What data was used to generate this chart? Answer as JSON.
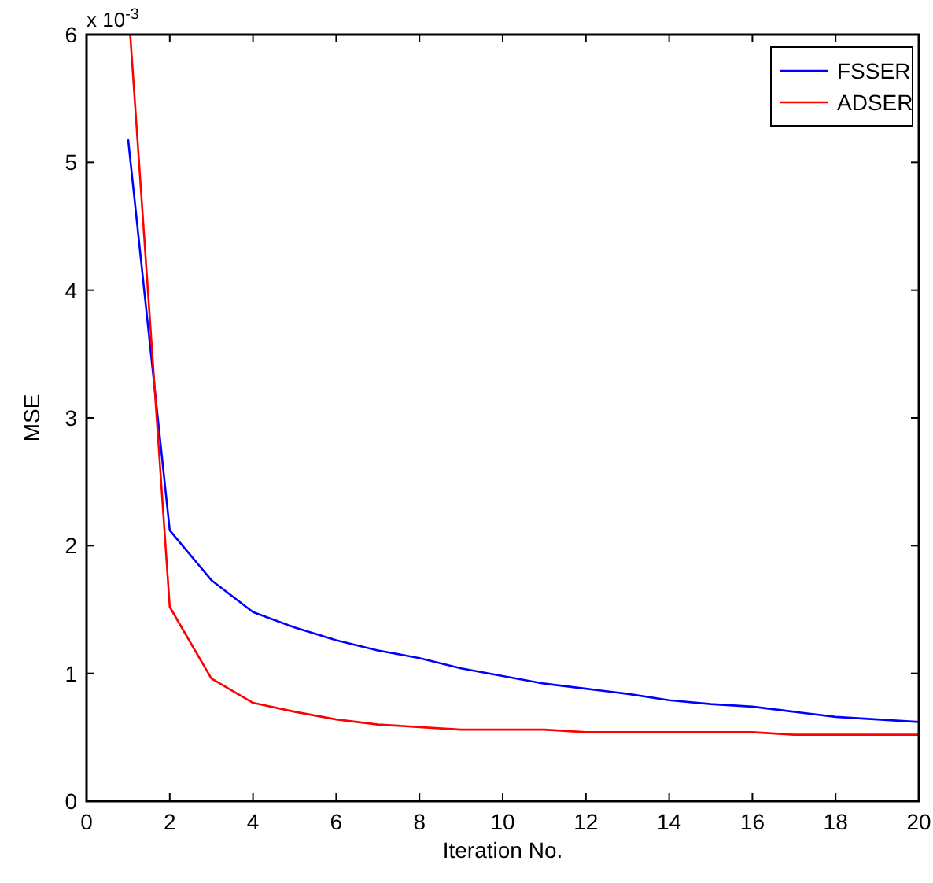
{
  "chart_data": {
    "type": "line",
    "xlabel": "Iteration No.",
    "ylabel": "MSE",
    "annotations": [
      "x 10$^{-3}$"
    ],
    "x": [
      1,
      2,
      3,
      4,
      5,
      6,
      7,
      8,
      9,
      10,
      11,
      12,
      13,
      14,
      15,
      16,
      17,
      18,
      19,
      20
    ],
    "series": [
      {
        "name": "FSSER",
        "color": "#0000ff",
        "values": [
          5.18,
          2.12,
          1.73,
          1.48,
          1.36,
          1.26,
          1.18,
          1.12,
          1.04,
          0.98,
          0.92,
          0.88,
          0.84,
          0.79,
          0.76,
          0.74,
          0.7,
          0.66,
          0.64,
          0.62
        ]
      },
      {
        "name": "ADSER",
        "color": "#ff0000",
        "x": [
          1.05,
          2,
          3,
          4,
          5,
          6,
          7,
          8,
          9,
          10,
          11,
          12,
          13,
          14,
          15,
          16,
          17,
          18,
          19,
          20
        ],
        "values": [
          6,
          1.52,
          0.96,
          0.77,
          0.7,
          0.64,
          0.6,
          0.58,
          0.56,
          0.56,
          0.56,
          0.54,
          0.54,
          0.54,
          0.54,
          0.54,
          0.52,
          0.52,
          0.52,
          0.52
        ]
      }
    ],
    "xlim": [
      0,
      20
    ],
    "xticks": [
      0,
      2,
      4,
      6,
      8,
      10,
      12,
      14,
      16,
      18,
      20
    ],
    "ylim": [
      0,
      6
    ],
    "yticks": [
      0,
      1,
      2,
      3,
      4,
      5,
      6
    ],
    "grid": false,
    "legend": "top right",
    "marker": "none",
    "line_style": "solid"
  }
}
